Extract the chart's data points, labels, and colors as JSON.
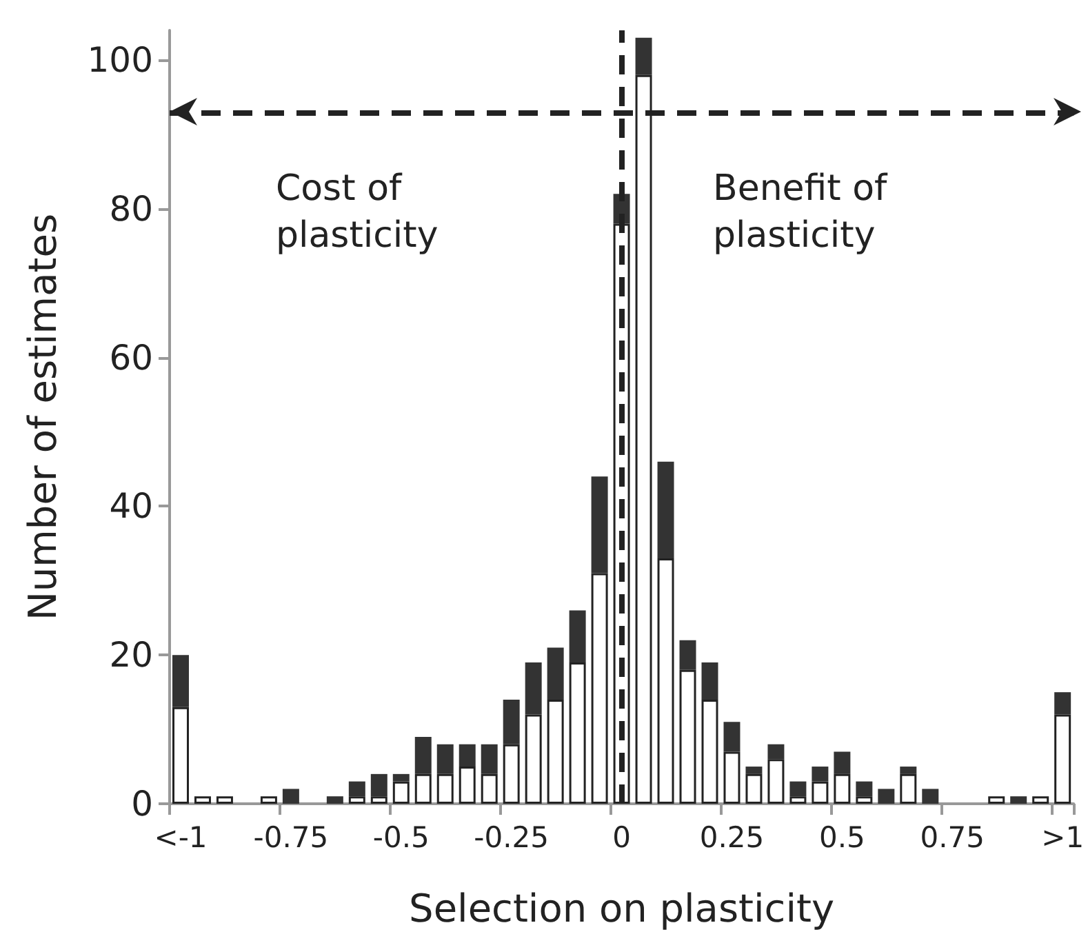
{
  "chart_data": {
    "type": "bar",
    "stacked": true,
    "xlabel": "Selection on plasticity",
    "ylabel": "Number of estimates",
    "categories": [
      "<-1",
      null,
      null,
      null,
      null,
      "-0.75",
      null,
      null,
      null,
      null,
      "-0.5",
      null,
      null,
      null,
      null,
      "-0.25",
      null,
      null,
      null,
      null,
      "0",
      null,
      null,
      null,
      null,
      "0.25",
      null,
      null,
      null,
      null,
      "0.5",
      null,
      null,
      null,
      null,
      "0.75",
      null,
      null,
      null,
      null,
      ">1"
    ],
    "series": [
      {
        "color": "#ffffff",
        "values": [
          13,
          1,
          1,
          0,
          1,
          0,
          0,
          0,
          1,
          1,
          3,
          4,
          4,
          5,
          4,
          8,
          12,
          14,
          19,
          31,
          78,
          98,
          33,
          18,
          14,
          7,
          4,
          6,
          1,
          3,
          4,
          1,
          0,
          4,
          0,
          0,
          0,
          1,
          0,
          1,
          12
        ]
      },
      {
        "color": "#333333",
        "values": [
          7,
          0,
          0,
          0,
          0,
          2,
          0,
          1,
          2,
          3,
          1,
          5,
          4,
          3,
          4,
          6,
          7,
          7,
          7,
          13,
          4,
          5,
          13,
          4,
          5,
          4,
          1,
          2,
          2,
          2,
          3,
          2,
          2,
          1,
          2,
          0,
          0,
          0,
          1,
          0,
          3
        ]
      }
    ],
    "ylim": [
      0,
      104
    ],
    "yticks": [
      0,
      20,
      40,
      60,
      80,
      100
    ],
    "ref_lines": [
      {
        "axis": "x",
        "value": "0",
        "color": "#222222",
        "line_style": "dashed"
      },
      {
        "axis": "y",
        "value": 93,
        "color": "#222222",
        "line_style": "dashed"
      }
    ],
    "annotations": [
      "Cost of plasticity",
      "Benefit of plasticity"
    ]
  }
}
